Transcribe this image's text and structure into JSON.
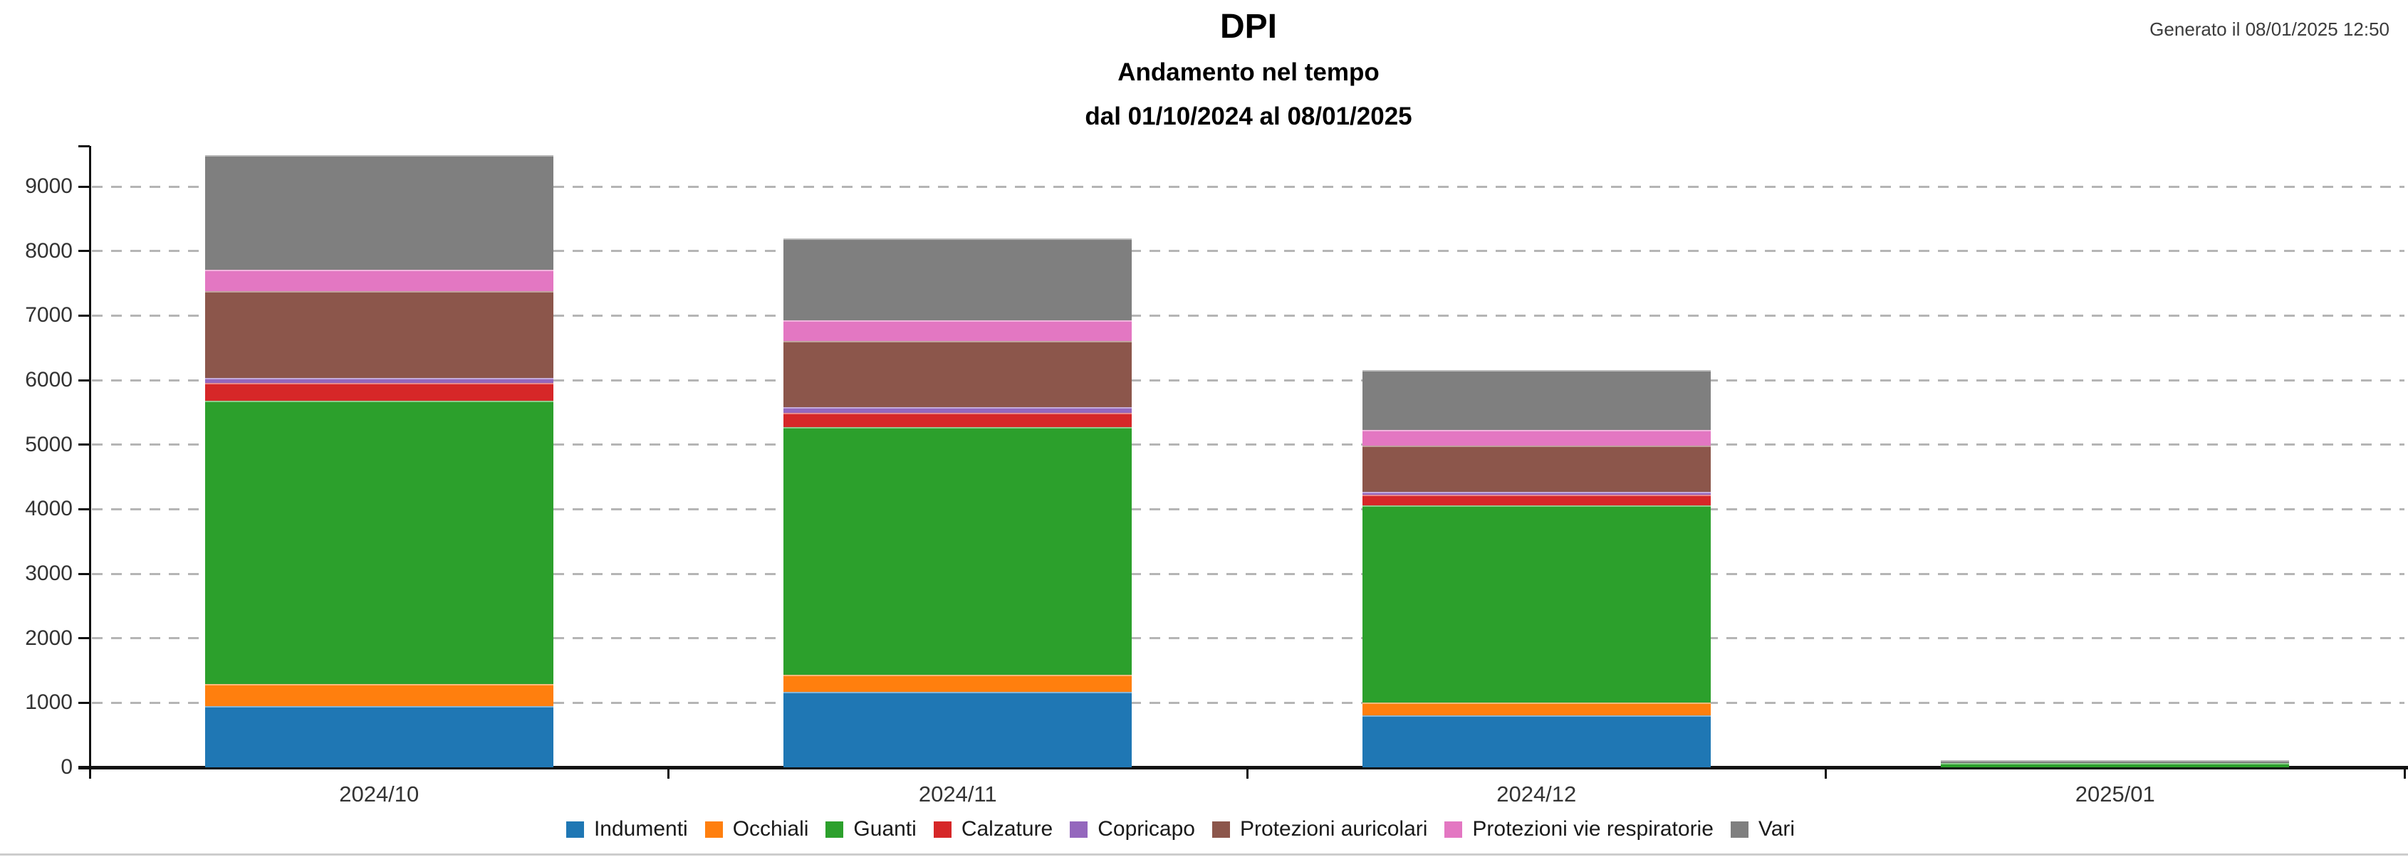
{
  "header": {
    "title": "DPI",
    "subtitle": "Andamento nel tempo",
    "date_range": "dal 01/10/2024 al 08/01/2025",
    "generated_label": "Generato il 08/01/2025 12:50"
  },
  "chart_data": {
    "type": "bar",
    "stacked": true,
    "title": "DPI",
    "subtitle": "Andamento nel tempo",
    "date_range": "dal 01/10/2024 al 08/01/2025",
    "categories": [
      "2024/10",
      "2024/11",
      "2024/12",
      "2025/01"
    ],
    "series": [
      {
        "name": "Indumenti",
        "color": "#1f77b4",
        "values": [
          950,
          1170,
          800,
          0
        ]
      },
      {
        "name": "Occhiali",
        "color": "#ff7f0e",
        "values": [
          345,
          260,
          200,
          0
        ]
      },
      {
        "name": "Guanti",
        "color": "#2ca02c",
        "values": [
          4385,
          3840,
          3060,
          70
        ]
      },
      {
        "name": "Calzature",
        "color": "#d62728",
        "values": [
          275,
          225,
          170,
          0
        ]
      },
      {
        "name": "Copricapo",
        "color": "#9467bd",
        "values": [
          80,
          85,
          40,
          0
        ]
      },
      {
        "name": "Protezioni auricolari",
        "color": "#8c564b",
        "values": [
          1340,
          1030,
          715,
          0
        ]
      },
      {
        "name": "Protezioni vie respiratorie",
        "color": "#e377c2",
        "values": [
          340,
          320,
          240,
          0
        ]
      },
      {
        "name": "Vari",
        "color": "#7f7f7f",
        "values": [
          1775,
          1270,
          925,
          45
        ]
      }
    ],
    "totals": [
      9490,
      8200,
      6150,
      115
    ],
    "xlabel": "",
    "ylabel": "",
    "y_ticks": [
      0,
      1000,
      2000,
      3000,
      4000,
      5000,
      6000,
      7000,
      8000,
      9000
    ],
    "ylim": [
      0,
      9630
    ],
    "grid": "dashed-horizontal",
    "legend_position": "bottom"
  }
}
